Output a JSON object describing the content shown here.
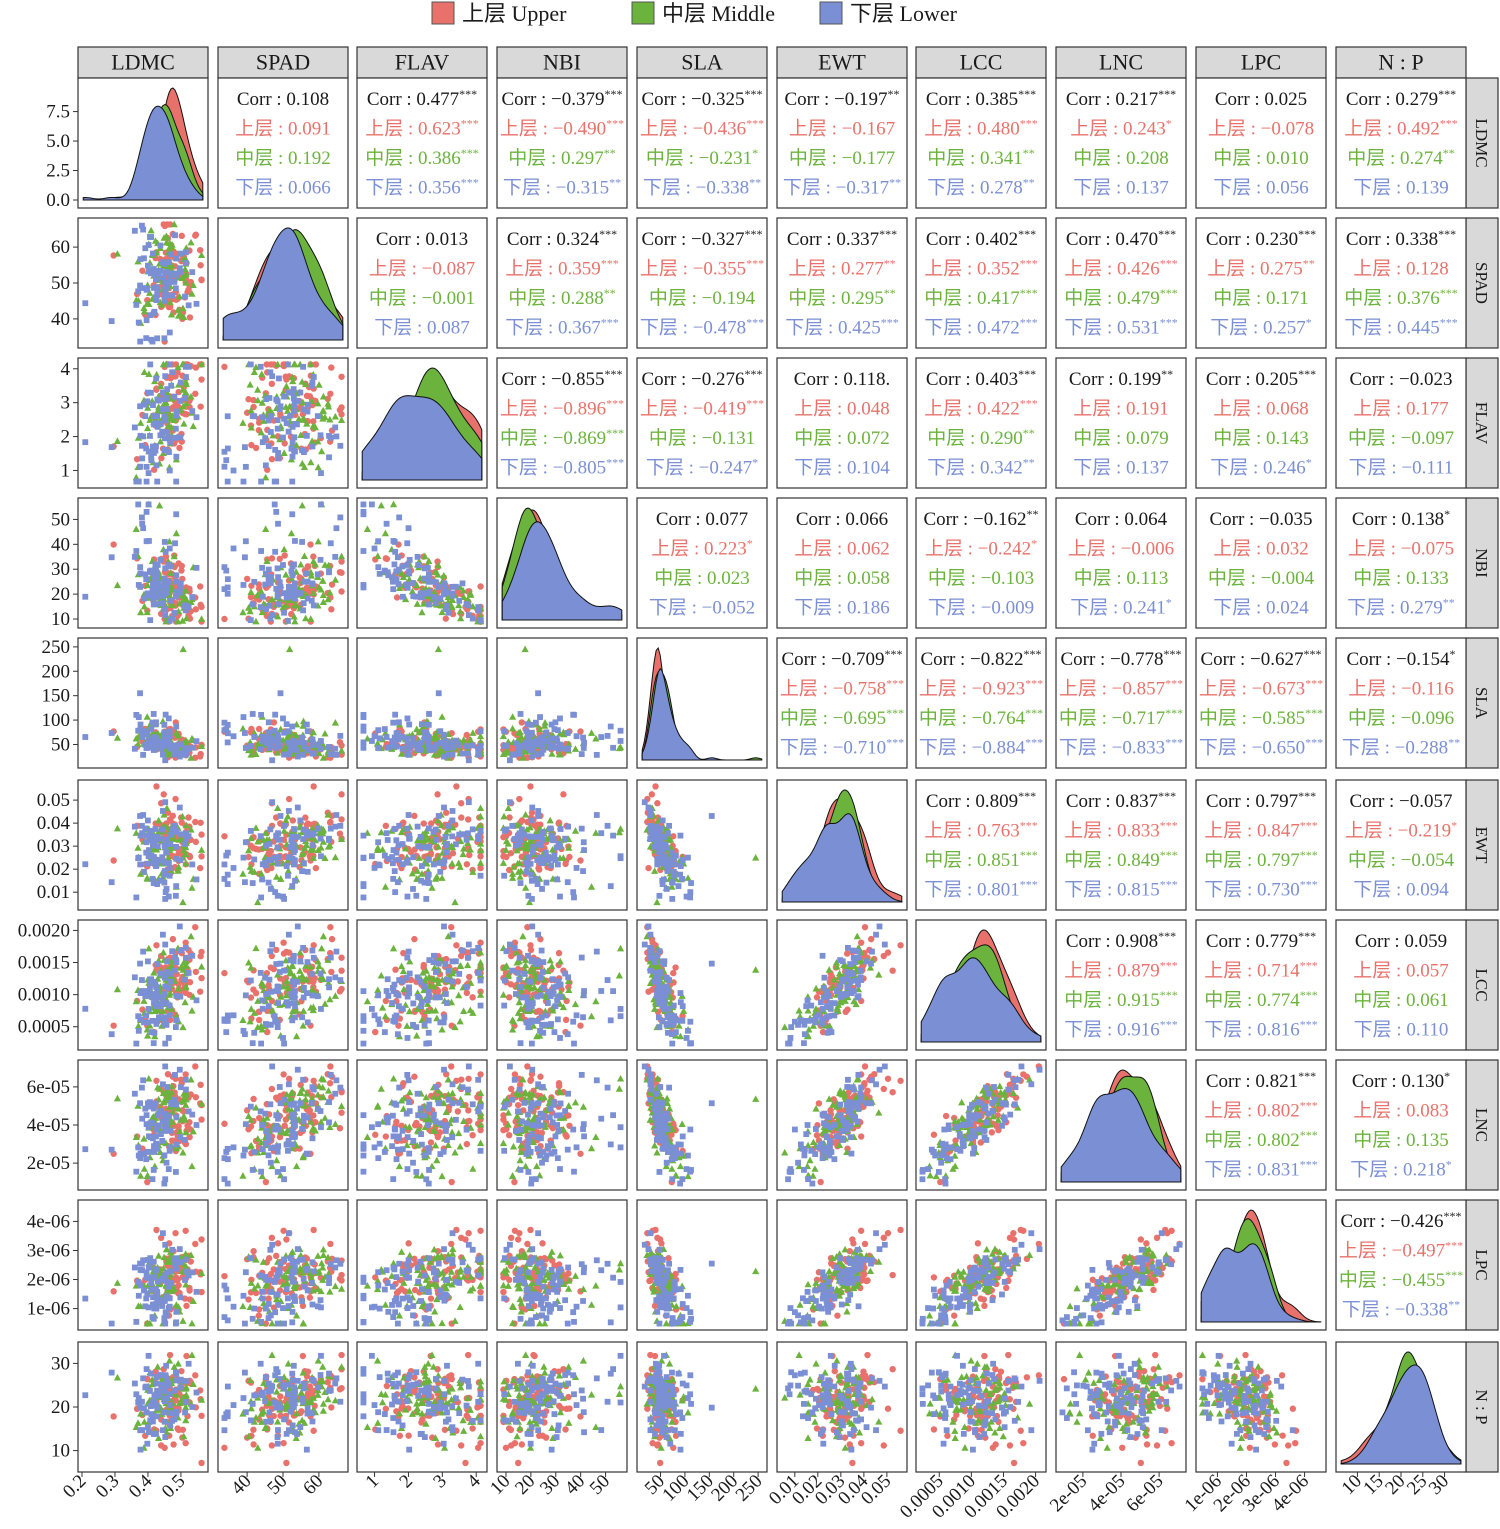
{
  "legend": [
    {
      "label": "上层 Upper",
      "color": "#e8726b",
      "marker": "circle"
    },
    {
      "label": "中层 Middle",
      "color": "#6cb33e",
      "marker": "triangle"
    },
    {
      "label": "下层 Lower",
      "color": "#7b8fd4",
      "marker": "square"
    }
  ],
  "colors": {
    "all": "#1a1a1a",
    "upper": "#e8726b",
    "middle": "#6cb33e",
    "lower": "#7b8fd4"
  },
  "chart_data": {
    "type": "scatter",
    "kind": "pairs-plot matrix (scatter below diagonal, density on diagonal, correlations above diagonal)",
    "variables": [
      "LDMC",
      "SPAD",
      "FLAV",
      "NBI",
      "SLA",
      "EWT",
      "LCC",
      "LNC",
      "LPC",
      "N : P"
    ],
    "groups": [
      "上层",
      "中层",
      "下层"
    ],
    "corr_prefix": "Corr : ",
    "ranges": [
      [
        0.2,
        0.57
      ],
      [
        33,
        67
      ],
      [
        0.6,
        4.2
      ],
      [
        8,
        57
      ],
      [
        10,
        260
      ],
      [
        0.004,
        0.057
      ],
      [
        0.0002,
        0.0021
      ],
      [
        8e-06,
        7.2e-05
      ],
      [
        4e-07,
        4.6e-06
      ],
      [
        6,
        34
      ]
    ],
    "x_tick_labels": [
      [
        "0.2",
        "0.3",
        "0.4",
        "0.5"
      ],
      [
        "40",
        "50",
        "60"
      ],
      [
        "1",
        "2",
        "3",
        "4"
      ],
      [
        "10",
        "20",
        "30",
        "40",
        "50"
      ],
      [
        "50",
        "100",
        "150",
        "200",
        "250"
      ],
      [
        "0.01",
        "0.02",
        "0.03",
        "0.04",
        "0.05"
      ],
      [
        "0.0005",
        "0.0010",
        "0.0015",
        "0.0020"
      ],
      [
        "2e-05",
        "4e-05",
        "6e-05"
      ],
      [
        "1e-06",
        "2e-06",
        "3e-06",
        "4e-06"
      ],
      [
        "10",
        "15",
        "20",
        "25",
        "30"
      ]
    ],
    "x_tick_values": [
      [
        0.2,
        0.3,
        0.4,
        0.5
      ],
      [
        40,
        50,
        60
      ],
      [
        1,
        2,
        3,
        4
      ],
      [
        10,
        20,
        30,
        40,
        50
      ],
      [
        50,
        100,
        150,
        200,
        250
      ],
      [
        0.01,
        0.02,
        0.03,
        0.04,
        0.05
      ],
      [
        0.0005,
        0.001,
        0.0015,
        0.002
      ],
      [
        2e-05,
        4e-05,
        6e-05
      ],
      [
        1e-06,
        2e-06,
        3e-06,
        4e-06
      ],
      [
        10,
        15,
        20,
        25,
        30
      ]
    ],
    "y_tick_labels": [
      [
        "0.0",
        "2.5",
        "5.0",
        "7.5"
      ],
      [
        "40",
        "50",
        "60"
      ],
      [
        "1",
        "2",
        "3",
        "4"
      ],
      [
        "10",
        "20",
        "30",
        "40",
        "50"
      ],
      [
        "50",
        "100",
        "150",
        "200",
        "250"
      ],
      [
        "0.01",
        "0.02",
        "0.03",
        "0.04",
        "0.05"
      ],
      [
        "0.0005",
        "0.0010",
        "0.0015",
        "0.0020"
      ],
      [
        "2e-05",
        "4e-05",
        "6e-05"
      ],
      [
        "1e-06",
        "2e-06",
        "3e-06",
        "4e-06"
      ],
      [
        "10",
        "20",
        "30"
      ]
    ],
    "y_tick_values": [
      [
        0.0,
        2.5,
        5.0,
        7.5
      ],
      [
        40,
        50,
        60
      ],
      [
        1,
        2,
        3,
        4
      ],
      [
        10,
        20,
        30,
        40,
        50
      ],
      [
        50,
        100,
        150,
        200,
        250
      ],
      [
        0.01,
        0.02,
        0.03,
        0.04,
        0.05
      ],
      [
        0.0005,
        0.001,
        0.0015,
        0.002
      ],
      [
        2e-05,
        4e-05,
        6e-05
      ],
      [
        1e-06,
        2e-06,
        3e-06,
        4e-06
      ],
      [
        10,
        20,
        30
      ]
    ],
    "ldmc_density_ylim": [
      0,
      9.5
    ],
    "correlations": [
      {
        "row": "LDMC",
        "col": "SPAD",
        "all": "0.108",
        "upper": "0.091",
        "middle": "0.192",
        "lower": "0.066"
      },
      {
        "row": "LDMC",
        "col": "FLAV",
        "all": "0.477***",
        "upper": "0.623***",
        "middle": "0.386***",
        "lower": "0.356***"
      },
      {
        "row": "LDMC",
        "col": "NBI",
        "all": "−0.379***",
        "upper": "−0.490***",
        "middle": "0.297**",
        "lower": "−0.315**"
      },
      {
        "row": "LDMC",
        "col": "SLA",
        "all": "−0.325***",
        "upper": "−0.436***",
        "middle": "−0.231*",
        "lower": "−0.338**"
      },
      {
        "row": "LDMC",
        "col": "EWT",
        "all": "−0.197**",
        "upper": "−0.167",
        "middle": "−0.177",
        "lower": "−0.317**"
      },
      {
        "row": "LDMC",
        "col": "LCC",
        "all": "0.385***",
        "upper": "0.480***",
        "middle": "0.341**",
        "lower": "0.278**"
      },
      {
        "row": "LDMC",
        "col": "LNC",
        "all": "0.217***",
        "upper": "0.243*",
        "middle": "0.208",
        "lower": "0.137"
      },
      {
        "row": "LDMC",
        "col": "LPC",
        "all": "0.025",
        "upper": "−0.078",
        "middle": "0.010",
        "lower": "0.056"
      },
      {
        "row": "LDMC",
        "col": "N : P",
        "all": "0.279***",
        "upper": "0.492***",
        "middle": "0.274**",
        "lower": "0.139"
      },
      {
        "row": "SPAD",
        "col": "FLAV",
        "all": "0.013",
        "upper": "−0.087",
        "middle": "−0.001",
        "lower": "0.087"
      },
      {
        "row": "SPAD",
        "col": "NBI",
        "all": "0.324***",
        "upper": "0.359***",
        "middle": "0.288**",
        "lower": "0.367***"
      },
      {
        "row": "SPAD",
        "col": "SLA",
        "all": "−0.327***",
        "upper": "−0.355***",
        "middle": "−0.194",
        "lower": "−0.478***"
      },
      {
        "row": "SPAD",
        "col": "EWT",
        "all": "0.337***",
        "upper": "0.277**",
        "middle": "0.295**",
        "lower": "0.425***"
      },
      {
        "row": "SPAD",
        "col": "LCC",
        "all": "0.402***",
        "upper": "0.352***",
        "middle": "0.417***",
        "lower": "0.472***"
      },
      {
        "row": "SPAD",
        "col": "LNC",
        "all": "0.470***",
        "upper": "0.426***",
        "middle": "0.479***",
        "lower": "0.531***"
      },
      {
        "row": "SPAD",
        "col": "LPC",
        "all": "0.230***",
        "upper": "0.275**",
        "middle": "0.171",
        "lower": "0.257*"
      },
      {
        "row": "SPAD",
        "col": "N : P",
        "all": "0.338***",
        "upper": "0.128",
        "middle": "0.376***",
        "lower": "0.445***"
      },
      {
        "row": "FLAV",
        "col": "NBI",
        "all": "−0.855***",
        "upper": "−0.896***",
        "middle": "−0.869***",
        "lower": "−0.805***"
      },
      {
        "row": "FLAV",
        "col": "SLA",
        "all": "−0.276***",
        "upper": "−0.419***",
        "middle": "−0.131",
        "lower": "−0.247*"
      },
      {
        "row": "FLAV",
        "col": "EWT",
        "all": "0.118.",
        "upper": "0.048",
        "middle": "0.072",
        "lower": "0.104"
      },
      {
        "row": "FLAV",
        "col": "LCC",
        "all": "0.403***",
        "upper": "0.422***",
        "middle": "0.290**",
        "lower": "0.342**"
      },
      {
        "row": "FLAV",
        "col": "LNC",
        "all": "0.199**",
        "upper": "0.191",
        "middle": "0.079",
        "lower": "0.137"
      },
      {
        "row": "FLAV",
        "col": "LPC",
        "all": "0.205***",
        "upper": "0.068",
        "middle": "0.143",
        "lower": "0.246*"
      },
      {
        "row": "FLAV",
        "col": "N : P",
        "all": "−0.023",
        "upper": "0.177",
        "middle": "−0.097",
        "lower": "−0.111"
      },
      {
        "row": "NBI",
        "col": "SLA",
        "all": "0.077",
        "upper": "0.223*",
        "middle": "0.023",
        "lower": "−0.052"
      },
      {
        "row": "NBI",
        "col": "EWT",
        "all": "0.066",
        "upper": "0.062",
        "middle": "0.058",
        "lower": "0.186"
      },
      {
        "row": "NBI",
        "col": "LCC",
        "all": "−0.162**",
        "upper": "−0.242*",
        "middle": "−0.103",
        "lower": "−0.009"
      },
      {
        "row": "NBI",
        "col": "LNC",
        "all": "0.064",
        "upper": "−0.006",
        "middle": "0.113",
        "lower": "0.241*"
      },
      {
        "row": "NBI",
        "col": "LPC",
        "all": "−0.035",
        "upper": "0.032",
        "middle": "−0.004",
        "lower": "0.024"
      },
      {
        "row": "NBI",
        "col": "N : P",
        "all": "0.138*",
        "upper": "−0.075",
        "middle": "0.133",
        "lower": "0.279**"
      },
      {
        "row": "SLA",
        "col": "EWT",
        "all": "−0.709***",
        "upper": "−0.758***",
        "middle": "−0.695***",
        "lower": "−0.710***"
      },
      {
        "row": "SLA",
        "col": "LCC",
        "all": "−0.822***",
        "upper": "−0.923***",
        "middle": "−0.764***",
        "lower": "−0.884***"
      },
      {
        "row": "SLA",
        "col": "LNC",
        "all": "−0.778***",
        "upper": "−0.857***",
        "middle": "−0.717***",
        "lower": "−0.833***"
      },
      {
        "row": "SLA",
        "col": "LPC",
        "all": "−0.627***",
        "upper": "−0.673***",
        "middle": "−0.585***",
        "lower": "−0.650***"
      },
      {
        "row": "SLA",
        "col": "N : P",
        "all": "−0.154*",
        "upper": "−0.116",
        "middle": "−0.096",
        "lower": "−0.288**"
      },
      {
        "row": "EWT",
        "col": "LCC",
        "all": "0.809***",
        "upper": "0.763***",
        "middle": "0.851***",
        "lower": "0.801***"
      },
      {
        "row": "EWT",
        "col": "LNC",
        "all": "0.837***",
        "upper": "0.833***",
        "middle": "0.849***",
        "lower": "0.815***"
      },
      {
        "row": "EWT",
        "col": "LPC",
        "all": "0.797***",
        "upper": "0.847***",
        "middle": "0.797***",
        "lower": "0.730***"
      },
      {
        "row": "EWT",
        "col": "N : P",
        "all": "−0.057",
        "upper": "−0.219*",
        "middle": "−0.054",
        "lower": "0.094"
      },
      {
        "row": "LCC",
        "col": "LNC",
        "all": "0.908***",
        "upper": "0.879***",
        "middle": "0.915***",
        "lower": "0.916***"
      },
      {
        "row": "LCC",
        "col": "LPC",
        "all": "0.779***",
        "upper": "0.714***",
        "middle": "0.774***",
        "lower": "0.816***"
      },
      {
        "row": "LCC",
        "col": "N : P",
        "all": "0.059",
        "upper": "0.057",
        "middle": "0.061",
        "lower": "0.110"
      },
      {
        "row": "LNC",
        "col": "LPC",
        "all": "0.821***",
        "upper": "0.802***",
        "middle": "0.802***",
        "lower": "0.831***"
      },
      {
        "row": "LNC",
        "col": "N : P",
        "all": "0.130*",
        "upper": "0.083",
        "middle": "0.135",
        "lower": "0.218*"
      },
      {
        "row": "LPC",
        "col": "N : P",
        "all": "−0.426***",
        "upper": "−0.497***",
        "middle": "−0.455***",
        "lower": "−0.338**"
      }
    ]
  }
}
